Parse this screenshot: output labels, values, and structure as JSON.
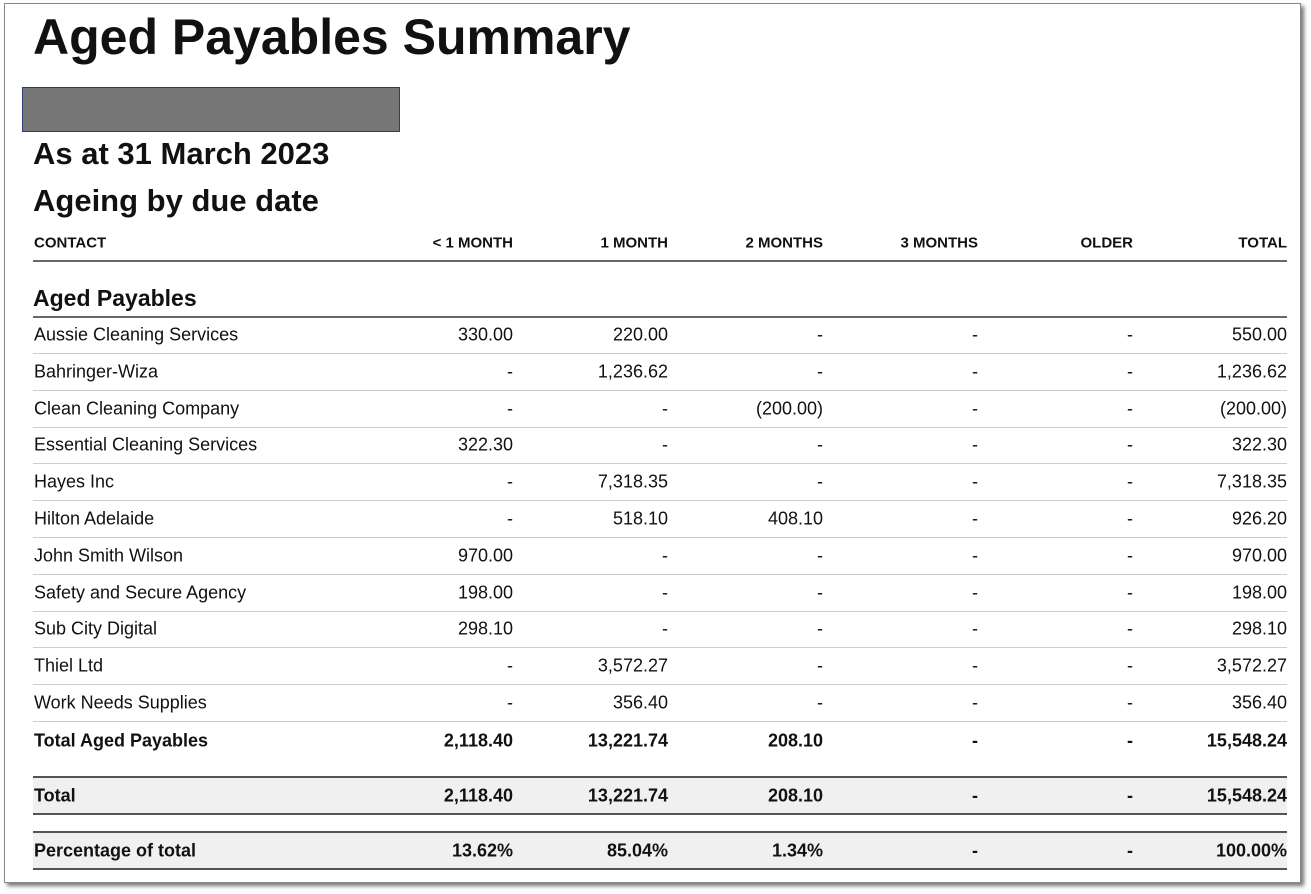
{
  "header": {
    "title": "Aged Payables Summary",
    "date": "As at 31 March 2023",
    "basis": "Ageing by due date"
  },
  "table": {
    "columns": [
      "CONTACT",
      "< 1 MONTH",
      "1 MONTH",
      "2 MONTHS",
      "3 MONTHS",
      "OLDER",
      "TOTAL"
    ],
    "section": "Aged Payables",
    "rows": [
      [
        "Aussie Cleaning Services",
        "330.00",
        "220.00",
        "-",
        "-",
        "-",
        "550.00"
      ],
      [
        "Bahringer-Wiza",
        "-",
        "1,236.62",
        "-",
        "-",
        "-",
        "1,236.62"
      ],
      [
        "Clean Cleaning Company",
        "-",
        "-",
        "(200.00)",
        "-",
        "-",
        "(200.00)"
      ],
      [
        "Essential Cleaning Services",
        "322.30",
        "-",
        "-",
        "-",
        "-",
        "322.30"
      ],
      [
        "Hayes Inc",
        "-",
        "7,318.35",
        "-",
        "-",
        "-",
        "7,318.35"
      ],
      [
        "Hilton Adelaide",
        "-",
        "518.10",
        "408.10",
        "-",
        "-",
        "926.20"
      ],
      [
        "John Smith Wilson",
        "970.00",
        "-",
        "-",
        "-",
        "-",
        "970.00"
      ],
      [
        "Safety and Secure Agency",
        "198.00",
        "-",
        "-",
        "-",
        "-",
        "198.00"
      ],
      [
        "Sub City Digital",
        "298.10",
        "-",
        "-",
        "-",
        "-",
        "298.10"
      ],
      [
        "Thiel Ltd",
        "-",
        "3,572.27",
        "-",
        "-",
        "-",
        "3,572.27"
      ],
      [
        "Work Needs Supplies",
        "-",
        "356.40",
        "-",
        "-",
        "-",
        "356.40"
      ]
    ],
    "subtotal": [
      "Total Aged Payables",
      "2,118.40",
      "13,221.74",
      "208.10",
      "-",
      "-",
      "15,548.24"
    ],
    "total": [
      "Total",
      "2,118.40",
      "13,221.74",
      "208.10",
      "-",
      "-",
      "15,548.24"
    ],
    "percentage": [
      "Percentage of total",
      "13.62%",
      "85.04%",
      "1.34%",
      "-",
      "-",
      "100.00%"
    ]
  }
}
